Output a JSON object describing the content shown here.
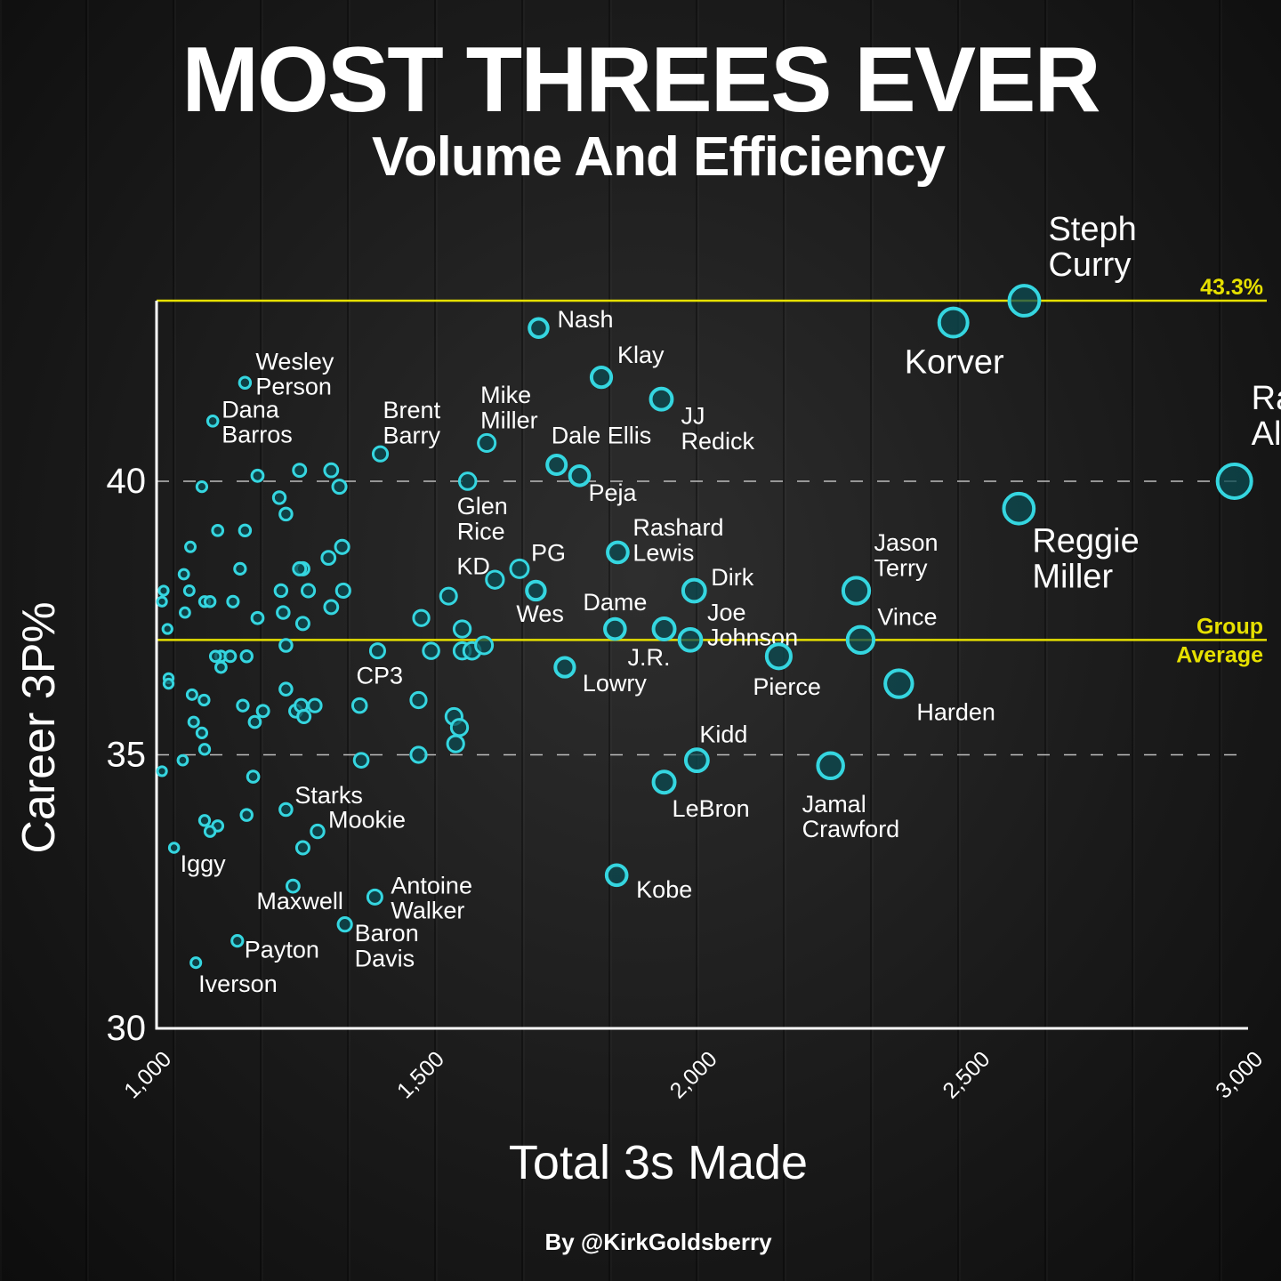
{
  "title": "MOST THREES EVER",
  "subtitle": "Volume And Efficiency",
  "credit": "By @KirkGoldsberry",
  "colors": {
    "background": "#141414",
    "point": "#35d6e0",
    "point_fill": "#0b4b52",
    "axis": "#ffffff",
    "reference": "#e6e000",
    "text": "#ffffff"
  },
  "chart_data": {
    "type": "scatter",
    "xlabel": "Total 3s Made",
    "ylabel": "Career 3P%",
    "xlim": [
      1000,
      3000
    ],
    "ylim": [
      30,
      43.3
    ],
    "xticks": [
      "1,000",
      "1,500",
      "2,000",
      "2,500",
      "3,000"
    ],
    "yticks": [
      "30",
      "35",
      "40"
    ],
    "gridlines": [
      35,
      40
    ],
    "reference_lines": [
      {
        "value": 43.3,
        "labels": [
          "43.3%"
        ]
      },
      {
        "value": 37.1,
        "labels": [
          "Group",
          "Average"
        ]
      }
    ],
    "labeled_points": [
      {
        "name": "Steph Curry",
        "label": [
          "Steph",
          "Curry"
        ],
        "x": 2590,
        "y": 43.3
      },
      {
        "name": "Korver",
        "label": [
          "Korver"
        ],
        "x": 2460,
        "y": 42.9
      },
      {
        "name": "Ray Allen",
        "label": [
          "Ray",
          "Allen"
        ],
        "x": 2975,
        "y": 40.0
      },
      {
        "name": "Reggie Miller",
        "label": [
          "Reggie",
          "Miller"
        ],
        "x": 2580,
        "y": 39.5
      },
      {
        "name": "Nash",
        "label": [
          "Nash"
        ],
        "x": 1700,
        "y": 42.8
      },
      {
        "name": "Klay",
        "label": [
          "Klay"
        ],
        "x": 1815,
        "y": 41.9
      },
      {
        "name": "JJ Redick",
        "label": [
          "JJ",
          "Redick"
        ],
        "x": 1925,
        "y": 41.5
      },
      {
        "name": "Wesley Person",
        "label": [
          "Wesley",
          "Person"
        ],
        "x": 1162,
        "y": 41.8
      },
      {
        "name": "Dana Barros",
        "label": [
          "Dana",
          "Barros"
        ],
        "x": 1103,
        "y": 41.1
      },
      {
        "name": "Brent Barry",
        "label": [
          "Brent",
          "Barry"
        ],
        "x": 1410,
        "y": 40.5
      },
      {
        "name": "Mike Miller",
        "label": [
          "Mike",
          "Miller"
        ],
        "x": 1605,
        "y": 40.7
      },
      {
        "name": "Dale Ellis",
        "label": [
          "Dale Ellis"
        ],
        "x": 1733,
        "y": 40.3
      },
      {
        "name": "Peja",
        "label": [
          "Peja"
        ],
        "x": 1775,
        "y": 40.1
      },
      {
        "name": "Glen Rice",
        "label": [
          "Glen",
          "Rice"
        ],
        "x": 1570,
        "y": 40.0
      },
      {
        "name": "Rashard Lewis",
        "label": [
          "Rashard",
          "Lewis"
        ],
        "x": 1845,
        "y": 38.7
      },
      {
        "name": "PG",
        "label": [
          "PG"
        ],
        "x": 1665,
        "y": 38.4
      },
      {
        "name": "KD",
        "label": [
          "KD"
        ],
        "x": 1620,
        "y": 38.2
      },
      {
        "name": "Wes",
        "label": [
          "Wes"
        ],
        "x": 1695,
        "y": 38.0
      },
      {
        "name": "Dame",
        "label": [
          "Dame"
        ],
        "x": 1840,
        "y": 37.3
      },
      {
        "name": "Dirk",
        "label": [
          "Dirk"
        ],
        "x": 1985,
        "y": 38.0
      },
      {
        "name": "Joe Johnson",
        "label": [
          "Joe",
          "Johnson"
        ],
        "x": 1978,
        "y": 37.1
      },
      {
        "name": "J.R.",
        "label": [
          "J.R."
        ],
        "x": 1930,
        "y": 37.3
      },
      {
        "name": "Jason Terry",
        "label": [
          "Jason",
          "Terry"
        ],
        "x": 2282,
        "y": 38.0
      },
      {
        "name": "Vince",
        "label": [
          "Vince"
        ],
        "x": 2290,
        "y": 37.1
      },
      {
        "name": "CP3",
        "label": [
          "CP3"
        ],
        "x": 1405,
        "y": 36.9
      },
      {
        "name": "Lowry",
        "label": [
          "Lowry"
        ],
        "x": 1748,
        "y": 36.6
      },
      {
        "name": "Pierce",
        "label": [
          "Pierce"
        ],
        "x": 2140,
        "y": 36.8
      },
      {
        "name": "Harden",
        "label": [
          "Harden"
        ],
        "x": 2360,
        "y": 36.3
      },
      {
        "name": "Kidd",
        "label": [
          "Kidd"
        ],
        "x": 1990,
        "y": 34.9
      },
      {
        "name": "LeBron",
        "label": [
          "LeBron"
        ],
        "x": 1930,
        "y": 34.5
      },
      {
        "name": "Jamal Crawford",
        "label": [
          "Jamal",
          "Crawford"
        ],
        "x": 2235,
        "y": 34.8
      },
      {
        "name": "Kobe",
        "label": [
          "Kobe"
        ],
        "x": 1843,
        "y": 32.8
      },
      {
        "name": "Starks",
        "label": [
          "Starks"
        ],
        "x": 1237,
        "y": 34.0
      },
      {
        "name": "Mookie",
        "label": [
          "Mookie"
        ],
        "x": 1295,
        "y": 33.6
      },
      {
        "name": "Iggy",
        "label": [
          "Iggy"
        ],
        "x": 1032,
        "y": 33.3
      },
      {
        "name": "Maxwell",
        "label": [
          "Maxwell"
        ],
        "x": 1250,
        "y": 32.6
      },
      {
        "name": "Antoine Walker",
        "label": [
          "Antoine",
          "Walker"
        ],
        "x": 1400,
        "y": 32.4
      },
      {
        "name": "Baron Davis",
        "label": [
          "Baron",
          "Davis"
        ],
        "x": 1345,
        "y": 31.9
      },
      {
        "name": "Payton",
        "label": [
          "Payton"
        ],
        "x": 1148,
        "y": 31.6
      },
      {
        "name": "Iverson",
        "label": [
          "Iverson"
        ],
        "x": 1072,
        "y": 31.2
      }
    ],
    "unlabeled_points": [
      [
        1083,
        39.9
      ],
      [
        1185,
        40.1
      ],
      [
        1262,
        40.2
      ],
      [
        1320,
        40.2
      ],
      [
        1335,
        39.9
      ],
      [
        1225,
        39.7
      ],
      [
        1237,
        39.4
      ],
      [
        1112,
        39.1
      ],
      [
        1162,
        39.1
      ],
      [
        1062,
        38.8
      ],
      [
        1340,
        38.8
      ],
      [
        1315,
        38.6
      ],
      [
        1268,
        38.4
      ],
      [
        1262,
        38.4
      ],
      [
        1153,
        38.4
      ],
      [
        1050,
        38.3
      ],
      [
        1013,
        38.0
      ],
      [
        1060,
        38.0
      ],
      [
        1228,
        38.0
      ],
      [
        1278,
        38.0
      ],
      [
        1342,
        38.0
      ],
      [
        1010,
        37.8
      ],
      [
        1088,
        37.8
      ],
      [
        1098,
        37.8
      ],
      [
        1140,
        37.8
      ],
      [
        1320,
        37.7
      ],
      [
        1052,
        37.6
      ],
      [
        1232,
        37.6
      ],
      [
        1185,
        37.5
      ],
      [
        1268,
        37.4
      ],
      [
        1020,
        37.3
      ],
      [
        1237,
        37.0
      ],
      [
        1118,
        36.8
      ],
      [
        1135,
        36.8
      ],
      [
        1165,
        36.8
      ],
      [
        1108,
        36.8
      ],
      [
        1118,
        36.6
      ],
      [
        1022,
        36.4
      ],
      [
        1022,
        36.3
      ],
      [
        1237,
        36.2
      ],
      [
        1065,
        36.1
      ],
      [
        1087,
        36.0
      ],
      [
        1158,
        35.9
      ],
      [
        1195,
        35.8
      ],
      [
        1255,
        35.8
      ],
      [
        1265,
        35.9
      ],
      [
        1270,
        35.7
      ],
      [
        1290,
        35.9
      ],
      [
        1372,
        35.9
      ],
      [
        1068,
        35.6
      ],
      [
        1180,
        35.6
      ],
      [
        1083,
        35.4
      ],
      [
        1088,
        35.1
      ],
      [
        1048,
        34.9
      ],
      [
        1375,
        34.9
      ],
      [
        1010,
        34.7
      ],
      [
        1177,
        34.6
      ],
      [
        1165,
        33.9
      ],
      [
        1088,
        33.8
      ],
      [
        1112,
        33.7
      ],
      [
        1098,
        33.6
      ],
      [
        1268,
        33.3
      ],
      [
        1485,
        37.5
      ],
      [
        1535,
        37.9
      ],
      [
        1560,
        37.3
      ],
      [
        1560,
        36.9
      ],
      [
        1503,
        36.9
      ],
      [
        1578,
        36.9
      ],
      [
        1600,
        37.0
      ],
      [
        1480,
        36.0
      ],
      [
        1545,
        35.7
      ],
      [
        1555,
        35.5
      ],
      [
        1548,
        35.2
      ],
      [
        1480,
        35.0
      ]
    ]
  }
}
